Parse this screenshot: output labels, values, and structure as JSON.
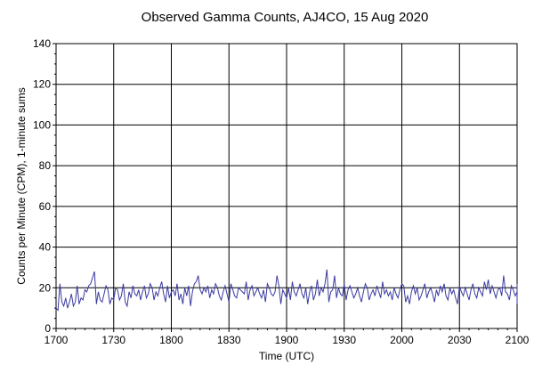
{
  "chart_data": {
    "type": "line",
    "title": "Observed Gamma Counts, AJ4CO, 15 Aug 2020",
    "xlabel": "Time (UTC)",
    "ylabel": "Counts per Minute (CPM), 1-minute sums",
    "x_tick_labels": [
      "1700",
      "1730",
      "1800",
      "1830",
      "1900",
      "1930",
      "2000",
      "2030",
      "2100"
    ],
    "y_tick_labels": [
      "0",
      "20",
      "40",
      "60",
      "80",
      "100",
      "120",
      "140"
    ],
    "xlim": [
      "17:00",
      "21:00"
    ],
    "ylim": [
      0,
      140
    ],
    "grid": true,
    "series_color": "#3a3aa0",
    "series": [
      {
        "x_start": "17:00",
        "x_step_minutes": 1,
        "values": [
          10,
          9,
          22,
          13,
          11,
          15,
          10,
          13,
          17,
          11,
          13,
          21,
          12,
          15,
          14,
          19,
          18,
          21,
          22,
          25,
          28,
          12,
          18,
          14,
          13,
          17,
          21,
          19,
          12,
          15,
          14,
          20,
          19,
          14,
          16,
          22,
          13,
          11,
          18,
          15,
          21,
          17,
          16,
          19,
          14,
          18,
          21,
          15,
          17,
          22,
          20,
          14,
          18,
          16,
          20,
          23,
          17,
          13,
          21,
          15,
          18,
          19,
          16,
          22,
          14,
          17,
          12,
          20,
          16,
          21,
          11,
          18,
          22,
          23,
          26,
          19,
          17,
          20,
          18,
          21,
          15,
          19,
          17,
          22,
          20,
          16,
          14,
          18,
          21,
          17,
          13,
          22,
          19,
          16,
          15,
          20,
          19,
          18,
          17,
          23,
          14,
          19,
          21,
          16,
          18,
          20,
          17,
          15,
          19,
          13,
          22,
          20,
          17,
          16,
          18,
          26,
          21,
          12,
          19,
          17,
          15,
          20,
          14,
          23,
          18,
          16,
          19,
          22,
          17,
          15,
          20,
          12,
          18,
          21,
          14,
          17,
          24,
          16,
          20,
          18,
          22,
          29,
          13,
          18,
          19,
          26,
          15,
          20,
          17,
          16,
          22,
          14,
          19,
          21,
          18,
          15,
          17,
          20,
          16,
          13,
          18,
          22,
          20,
          14,
          17,
          19,
          16,
          21,
          18,
          15,
          23,
          17,
          19,
          16,
          18,
          14,
          20,
          17,
          15,
          19,
          22,
          21,
          13,
          16,
          12,
          18,
          21,
          17,
          20,
          14,
          16,
          19,
          22,
          15,
          18,
          20,
          17,
          13,
          19,
          16,
          21,
          18,
          22,
          16,
          14,
          20,
          17,
          19,
          15,
          12,
          21,
          18,
          16,
          20,
          17,
          14,
          19,
          22,
          17,
          15,
          20,
          18,
          16,
          23,
          19,
          24,
          17,
          21,
          18,
          15,
          19,
          20,
          16,
          26,
          18,
          17,
          14,
          21,
          19,
          16,
          18,
          22,
          20,
          15,
          17,
          21,
          16,
          19,
          14,
          13,
          18,
          20,
          17,
          22,
          16,
          21,
          19,
          12,
          20,
          21,
          19
        ]
      }
    ]
  }
}
